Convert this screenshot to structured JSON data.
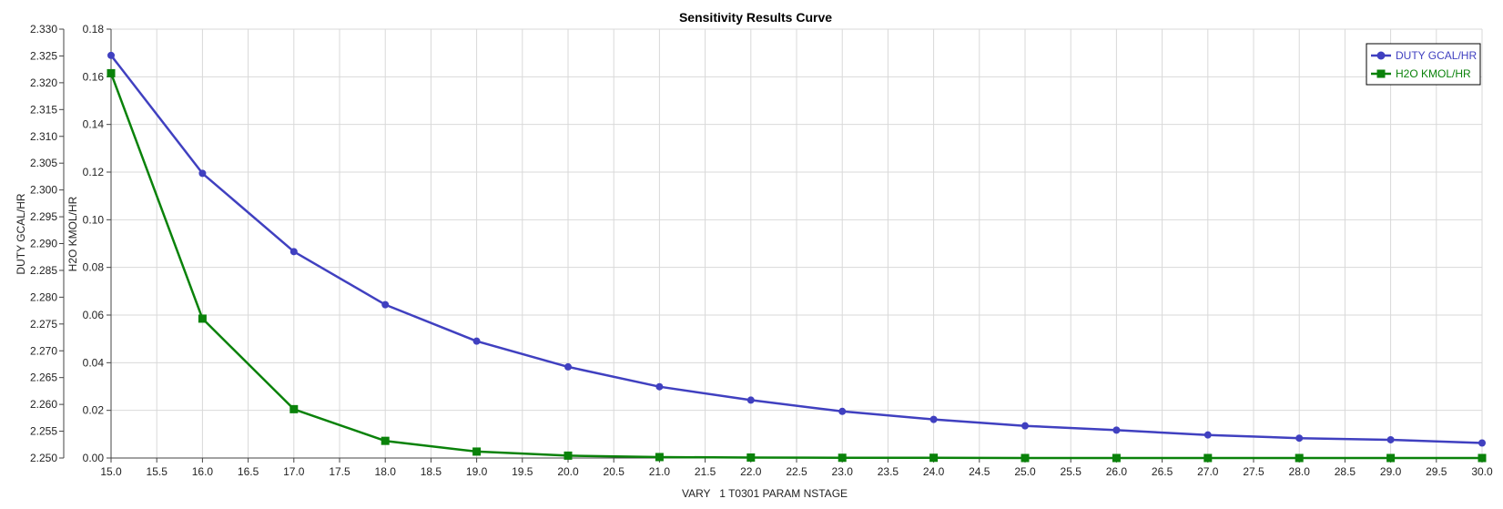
{
  "chart_data": {
    "type": "line",
    "title": "Sensitivity Results Curve",
    "xlabel": "VARY   1 T0301 PARAM NSTAGE",
    "ylabel_left": "DUTY GCAL/HR",
    "ylabel_right_inner": "H2O KMOL/HR",
    "xlim": [
      15.0,
      30.0
    ],
    "ylim_duty": [
      2.25,
      2.33
    ],
    "ylim_h2o": [
      0.0,
      0.18
    ],
    "grid": true,
    "legend_position": "top-right",
    "x": [
      15.0,
      16.0,
      17.0,
      18.0,
      19.0,
      20.0,
      21.0,
      22.0,
      23.0,
      24.0,
      25.0,
      26.0,
      27.0,
      28.0,
      29.0,
      30.0
    ],
    "x_tick_labels": [
      "15.0",
      "15.5",
      "16.0",
      "16.5",
      "17.0",
      "17.5",
      "18.0",
      "18.5",
      "19.0",
      "19.5",
      "20.0",
      "20.5",
      "21.0",
      "21.5",
      "22.0",
      "22.5",
      "23.0",
      "23.5",
      "24.0",
      "24.5",
      "25.0",
      "25.5",
      "26.0",
      "26.5",
      "27.0",
      "27.5",
      "28.0",
      "28.5",
      "29.0",
      "29.5",
      "30.0"
    ],
    "duty_tick_labels": [
      "2.250",
      "2.255",
      "2.260",
      "2.265",
      "2.270",
      "2.275",
      "2.280",
      "2.285",
      "2.290",
      "2.295",
      "2.300",
      "2.305",
      "2.310",
      "2.315",
      "2.320",
      "2.325",
      "2.330"
    ],
    "h2o_tick_labels": [
      "0.00",
      "0.02",
      "0.04",
      "0.06",
      "0.08",
      "0.10",
      "0.12",
      "0.14",
      "0.16",
      "0.18"
    ],
    "series": [
      {
        "name": "DUTY GCAL/HR",
        "axis": "duty",
        "color": "#4040c0",
        "marker": "circle",
        "values": [
          2.3251,
          2.3031,
          2.2885,
          2.2786,
          2.2718,
          2.267,
          2.2633,
          2.2608,
          2.2587,
          2.2572,
          2.256,
          2.2552,
          2.2543,
          2.2537,
          2.2534,
          2.2528
        ]
      },
      {
        "name": "H2O KMOL/HR",
        "axis": "h2o",
        "color": "#0a820a",
        "marker": "square",
        "values": [
          0.1615,
          0.0585,
          0.0205,
          0.0072,
          0.0027,
          0.001,
          0.0004,
          0.0002,
          0.0001,
          0.0001,
          0.0,
          0.0,
          0.0,
          0.0,
          0.0,
          0.0
        ]
      }
    ]
  }
}
